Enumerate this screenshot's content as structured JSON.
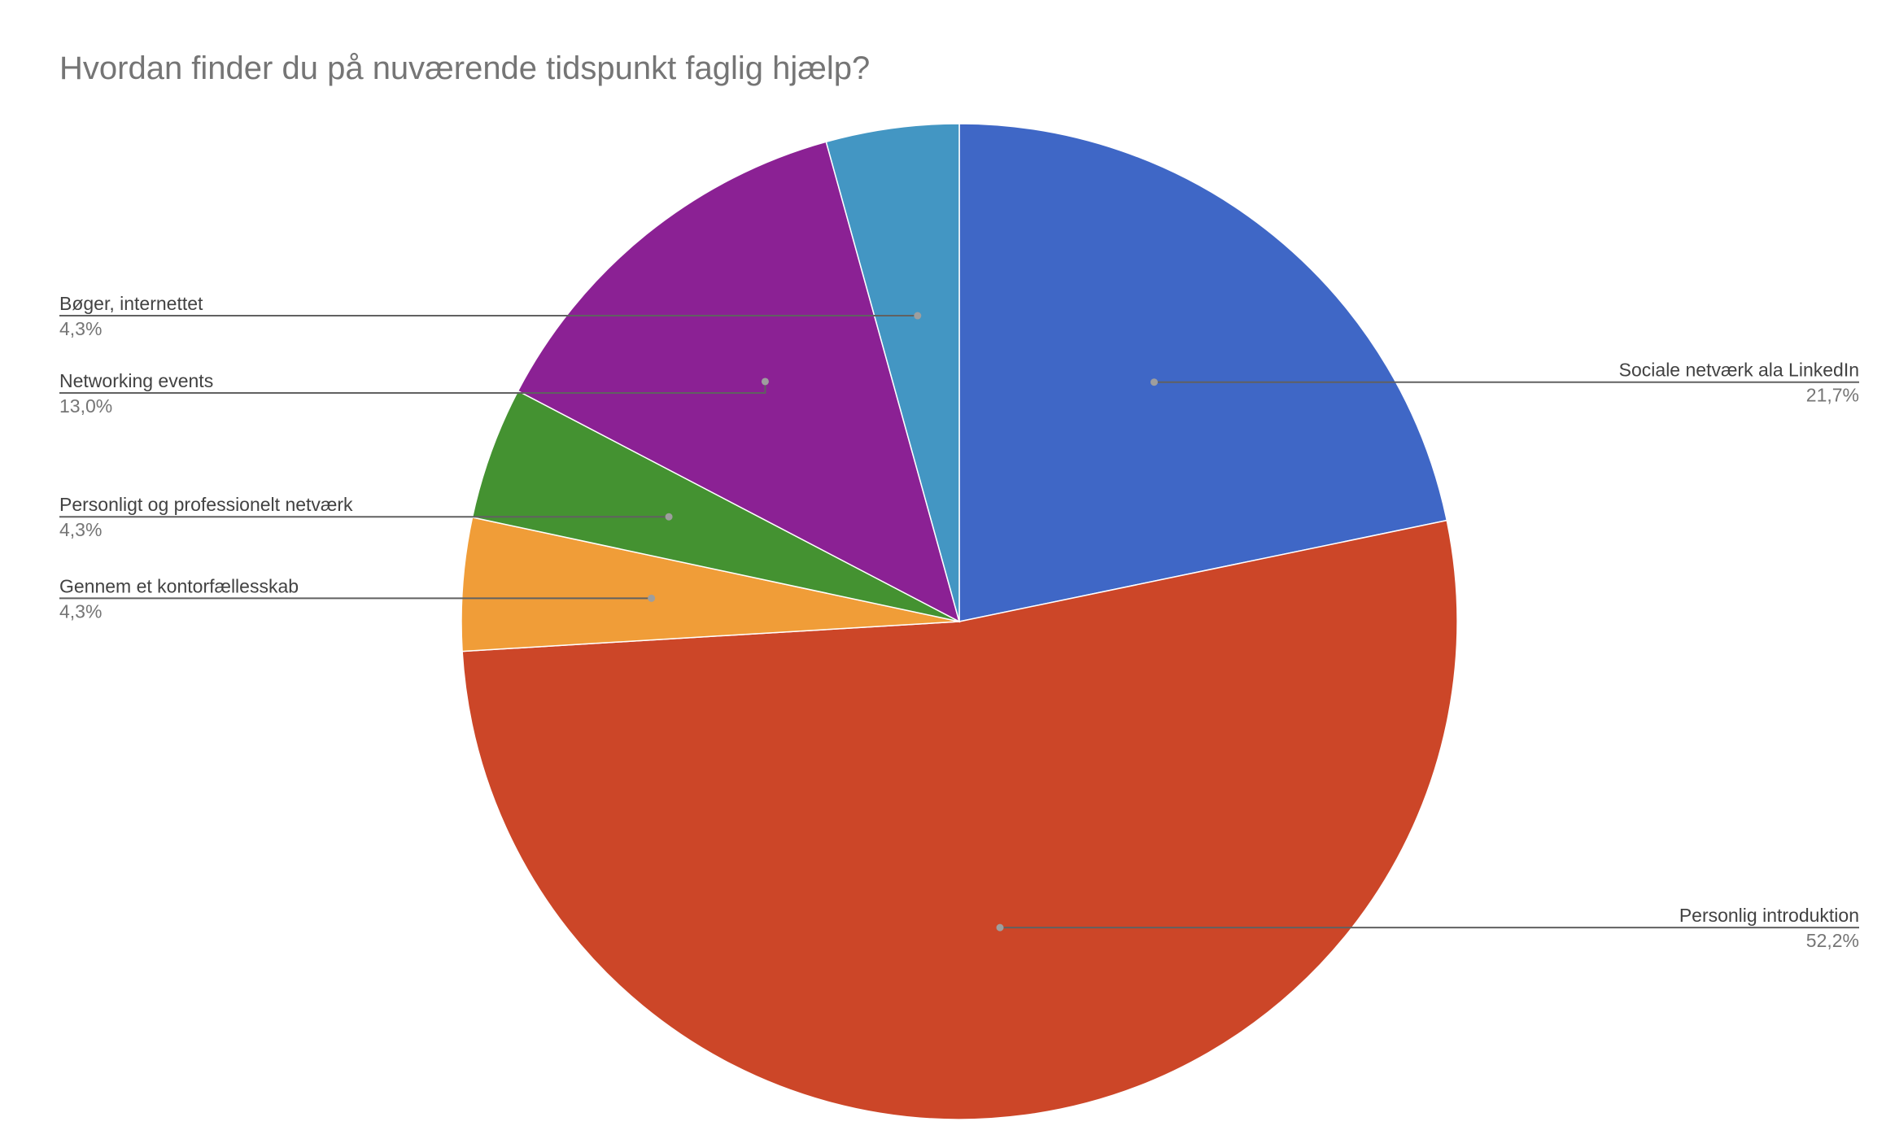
{
  "chart_data": {
    "type": "pie",
    "title": "Hvordan finder du på nuværende tidspunkt faglig hjælp?",
    "start_angle_deg": 0,
    "direction": "clockwise",
    "slices": [
      {
        "label": "Sociale netværk ala LinkedIn",
        "value": 21.7,
        "value_label": "21,7%",
        "color": "#3f67c6",
        "label_side": "right"
      },
      {
        "label": "Personlig introduktion",
        "value": 52.2,
        "value_label": "52,2%",
        "color": "#cc4628",
        "label_side": "right"
      },
      {
        "label": "Gennem et kontorfællesskab",
        "value": 4.3,
        "value_label": "4,3%",
        "color": "#f09d38",
        "label_side": "left"
      },
      {
        "label": "Personligt og professionelt netværk",
        "value": 4.3,
        "value_label": "4,3%",
        "color": "#449231",
        "label_side": "left"
      },
      {
        "label": "Networking events",
        "value": 13.0,
        "value_label": "13,0%",
        "color": "#8b2194",
        "label_side": "left"
      },
      {
        "label": "Bøger, internettet",
        "value": 4.3,
        "value_label": "4,3%",
        "color": "#4396c3",
        "label_side": "left"
      }
    ],
    "legend": "none",
    "slice_border_color": "#ffffff"
  }
}
